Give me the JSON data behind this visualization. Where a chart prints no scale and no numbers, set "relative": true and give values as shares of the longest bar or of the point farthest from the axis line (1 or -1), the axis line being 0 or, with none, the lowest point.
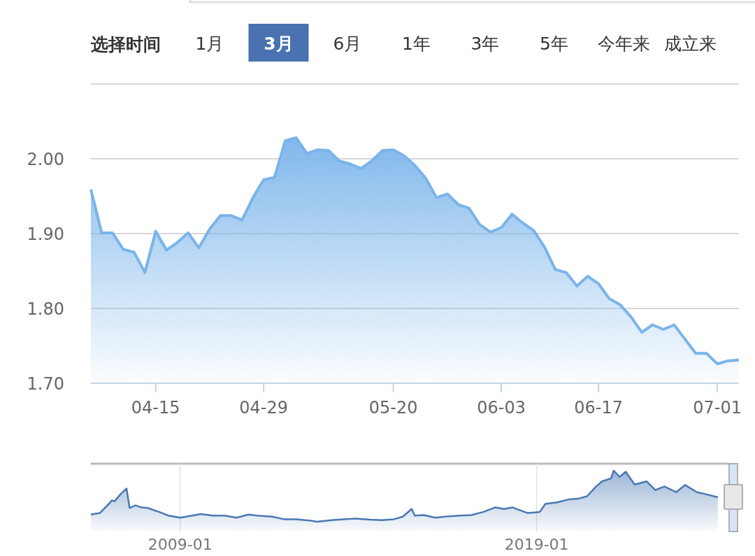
{
  "chart_data": [
    {
      "type": "area",
      "title": "选择时间",
      "annotations": [
        "1月",
        "3月",
        "6月",
        "1年",
        "3年",
        "5年",
        "今年来",
        "成立来"
      ],
      "categories": [
        null,
        null,
        null,
        null,
        null,
        null,
        "04-15",
        null,
        null,
        null,
        null,
        null,
        null,
        null,
        null,
        null,
        "04-29",
        null,
        null,
        null,
        null,
        null,
        null,
        null,
        null,
        null,
        null,
        null,
        "05-20",
        null,
        null,
        null,
        null,
        null,
        null,
        null,
        null,
        null,
        "06-03",
        null,
        null,
        null,
        null,
        null,
        null,
        null,
        null,
        "06-17",
        null,
        null,
        null,
        null,
        null,
        null,
        null,
        null,
        null,
        null,
        "07-01",
        null,
        null
      ],
      "values": [
        1.959,
        1.901,
        1.901,
        1.879,
        1.875,
        1.848,
        1.903,
        1.878,
        1.888,
        1.901,
        1.881,
        1.906,
        1.924,
        1.924,
        1.918,
        1.948,
        1.972,
        1.975,
        2.024,
        2.028,
        2.007,
        2.012,
        2.011,
        1.997,
        1.993,
        1.987,
        1.997,
        2.011,
        2.012,
        2.004,
        1.991,
        1.974,
        1.948,
        1.953,
        1.939,
        1.934,
        1.912,
        1.902,
        1.908,
        1.926,
        1.914,
        1.904,
        1.882,
        1.852,
        1.848,
        1.83,
        1.843,
        1.833,
        1.813,
        1.805,
        1.789,
        1.768,
        1.778,
        1.772,
        1.778,
        1.759,
        1.74,
        1.74,
        1.726,
        1.73,
        1.731
      ],
      "color": "#7ab4ea",
      "ylim": [
        1.7,
        2.1
      ],
      "yticks": [
        {
          "value": 1.7,
          "label": "1.70"
        },
        {
          "value": 1.8,
          "label": "1.80"
        },
        {
          "value": 1.9,
          "label": "1.90"
        },
        {
          "value": 2.0,
          "label": "2.00"
        },
        {
          "value": 2.1,
          "label": null
        }
      ],
      "grid": "y"
    },
    {
      "type": "area",
      "relative": true,
      "color": "#4a78b4",
      "grid": "x",
      "xlim": [
        "2006-07",
        "2024-07"
      ],
      "xticks": [
        "2009-01",
        "2019-01"
      ],
      "x": [
        "2006-07",
        "2006-10",
        "2007-01",
        "2007-02",
        "2007-03",
        "2007-05",
        "2007-07",
        "2007-08",
        "2007-10",
        "2007-12",
        "2008-02",
        "2008-06",
        "2008-09",
        "2009-01",
        "2009-05",
        "2009-08",
        "2009-12",
        "2010-04",
        "2010-08",
        "2010-12",
        "2011-03",
        "2011-08",
        "2011-12",
        "2012-04",
        "2012-09",
        "2012-11",
        "2013-04",
        "2013-08",
        "2013-12",
        "2014-05",
        "2014-09",
        "2015-01",
        "2015-04",
        "2015-07",
        "2015-08",
        "2015-11",
        "2016-03",
        "2016-06",
        "2016-11",
        "2017-03",
        "2017-07",
        "2017-11",
        "2018-02",
        "2018-05",
        "2018-10",
        "2019-02",
        "2019-04",
        "2019-08",
        "2019-12",
        "2020-03",
        "2020-06",
        "2020-09",
        "2020-11",
        "2021-02",
        "2021-03",
        "2021-05",
        "2021-07",
        "2021-10",
        "2022-02",
        "2022-05",
        "2022-08",
        "2022-12",
        "2023-03",
        "2023-07",
        "2023-10",
        "2024-02"
      ],
      "values": [
        0.14,
        0.17,
        0.35,
        0.42,
        0.4,
        0.54,
        0.65,
        0.27,
        0.32,
        0.28,
        0.27,
        0.19,
        0.12,
        0.08,
        0.12,
        0.15,
        0.12,
        0.12,
        0.08,
        0.14,
        0.12,
        0.1,
        0.05,
        0.05,
        0.02,
        0,
        0.03,
        0.05,
        0.06,
        0.04,
        0.03,
        0.05,
        0.1,
        0.25,
        0.12,
        0.13,
        0.08,
        0.1,
        0.12,
        0.13,
        0.19,
        0.28,
        0.25,
        0.28,
        0.17,
        0.19,
        0.35,
        0.38,
        0.44,
        0.45,
        0.5,
        0.69,
        0.79,
        0.85,
        1.0,
        0.88,
        0.98,
        0.73,
        0.79,
        0.62,
        0.69,
        0.58,
        0.72,
        0.58,
        0.54,
        0.48
      ]
    }
  ]
}
